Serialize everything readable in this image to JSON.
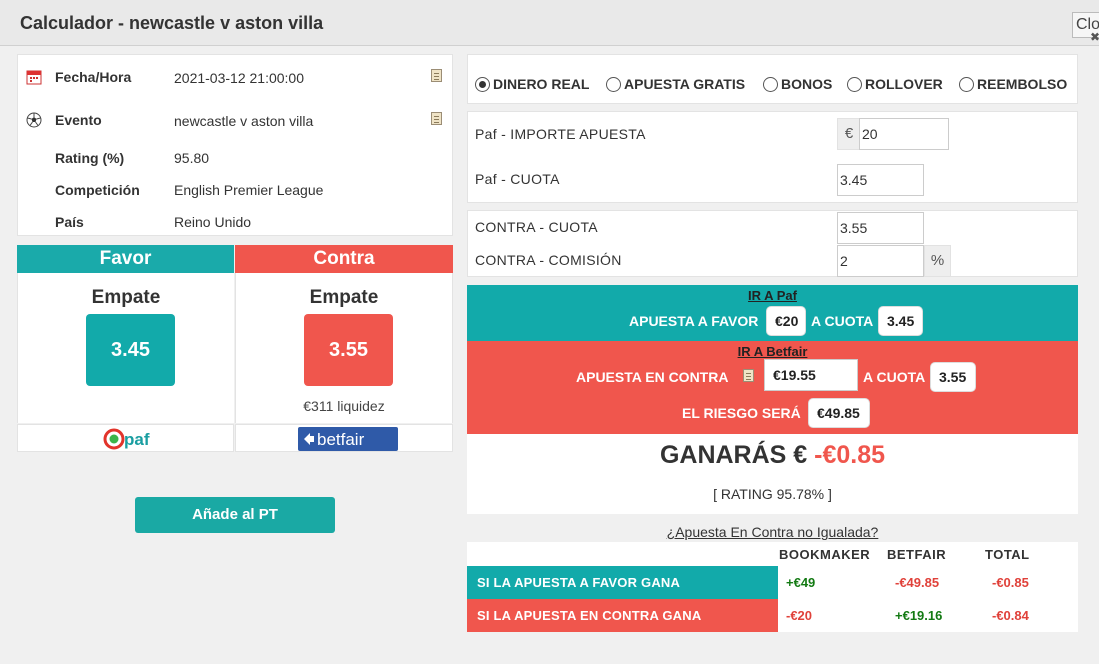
{
  "window": {
    "title": "Calculador - newcastle v aston villa",
    "close_label": "Close"
  },
  "event_info": {
    "rows": [
      {
        "label": "Fecha/Hora",
        "value": "2021-03-12 21:00:00",
        "icon": "calendar-icon"
      },
      {
        "label": "Evento",
        "value": "newcastle v aston villa",
        "icon": "soccer-ball-icon"
      },
      {
        "label": "Rating (%)",
        "value": "95.80"
      },
      {
        "label": "Competición",
        "value": "English Premier League"
      },
      {
        "label": "País",
        "value": "Reino Unido"
      }
    ]
  },
  "favor": {
    "header": "Favor",
    "selection": "Empate",
    "odds": "3.45",
    "bookmaker_logo": "paf",
    "color": "#1aaaaa"
  },
  "contra": {
    "header": "Contra",
    "selection": "Empate",
    "odds": "3.55",
    "liquidity": "€311 liquidez",
    "exchange_logo": "betfair",
    "color": "#f0564d"
  },
  "add_button_label": "Añade al PT",
  "bet_types": {
    "options": [
      "DINERO REAL",
      "APUESTA GRATIS",
      "BONOS",
      "ROLLOVER",
      "REEMBOLSO"
    ],
    "selected": "DINERO REAL"
  },
  "form": {
    "stake_label": "Paf - IMPORTE APUESTA",
    "stake_currency": "€",
    "stake_value": "20",
    "back_odds_label": "Paf - CUOTA",
    "back_odds_value": "3.45",
    "lay_odds_label": "CONTRA - CUOTA",
    "lay_odds_value": "3.55",
    "commission_label": "CONTRA - COMISIÓN",
    "commission_value": "2",
    "commission_unit": "%"
  },
  "instructions": {
    "back_link": "IR A Paf",
    "back_text": "APUESTA A FAVOR",
    "back_stake": "€20",
    "back_odds_text": "A CUOTA",
    "back_odds": "3.45",
    "lay_link": "IR A Betfair",
    "lay_text": "APUESTA EN CONTRA",
    "lay_stake": "€19.55",
    "lay_odds_text": "A CUOTA",
    "lay_odds": "3.55",
    "risk_text": "EL RIESGO SERÁ",
    "risk_value": "€49.85"
  },
  "result": {
    "label": "GANARÁS €",
    "value": "-€0.85",
    "rating": "[ RATING 95.78% ]"
  },
  "unmatched_link": "¿Apuesta En Contra no Igualada?",
  "outcome_table": {
    "headers": [
      "BOOKMAKER",
      "BETFAIR",
      "TOTAL"
    ],
    "rows": [
      {
        "label": "SI LA APUESTA A FAVOR GANA",
        "bookmaker": "+€49",
        "betfair": "-€49.85",
        "total": "-€0.85"
      },
      {
        "label": "SI LA APUESTA EN CONTRA GANA",
        "bookmaker": "-€20",
        "betfair": "+€19.16",
        "total": "-€0.84"
      }
    ]
  }
}
